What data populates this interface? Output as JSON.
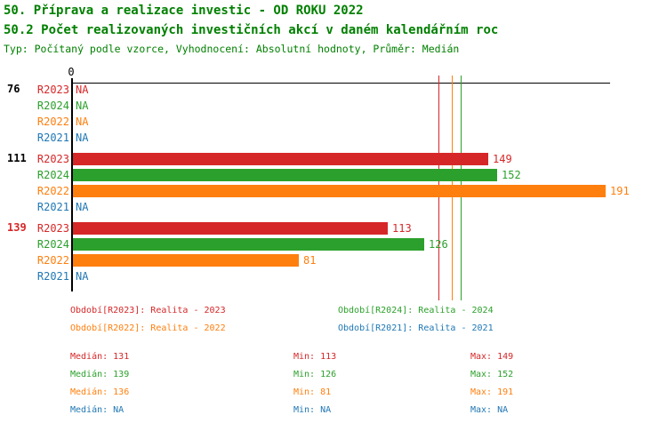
{
  "header": {
    "title": "50. Příprava a realizace investic - OD ROKU 2022",
    "subtitle": "50.2 Počet realizovaných investičních akcí v daném kalendářním roc",
    "meta": "Typ: Počítaný podle vzorce, Vyhodnocení: Absolutní hodnoty, Průměr: Medián",
    "title_color": "#008000"
  },
  "series_colors": {
    "R2023": "#d62728",
    "R2024": "#2ca02c",
    "R2022": "#ff7f0e",
    "R2021": "#1f77b4"
  },
  "chart_data": {
    "type": "bar",
    "orientation": "horizontal",
    "axis_zero_label": "0",
    "xlim": [
      0,
      192
    ],
    "gridlines": false,
    "na_text": "NA",
    "series_order": [
      "R2023",
      "R2024",
      "R2022",
      "R2021"
    ],
    "groups": [
      {
        "label": "76",
        "label_color": "#000000",
        "bars": [
          {
            "series": "R2023",
            "value": null
          },
          {
            "series": "R2024",
            "value": null
          },
          {
            "series": "R2022",
            "value": null
          },
          {
            "series": "R2021",
            "value": null
          }
        ]
      },
      {
        "label": "111",
        "label_color": "#000000",
        "bars": [
          {
            "series": "R2023",
            "value": 149
          },
          {
            "series": "R2024",
            "value": 152
          },
          {
            "series": "R2022",
            "value": 191
          },
          {
            "series": "R2021",
            "value": null
          }
        ]
      },
      {
        "label": "139",
        "label_color": "#d62728",
        "bars": [
          {
            "series": "R2023",
            "value": 113
          },
          {
            "series": "R2024",
            "value": 126
          },
          {
            "series": "R2022",
            "value": 81
          },
          {
            "series": "R2021",
            "value": null
          }
        ]
      }
    ],
    "median_lines": [
      {
        "series": "R2023",
        "value": 131
      },
      {
        "series": "R2022",
        "value": 136
      },
      {
        "series": "R2024",
        "value": 139
      }
    ]
  },
  "legend": {
    "items": [
      {
        "series": "R2023",
        "text": "Období[R2023]: Realita - 2023"
      },
      {
        "series": "R2024",
        "text": "Období[R2024]: Realita - 2024"
      },
      {
        "series": "R2022",
        "text": "Období[R2022]: Realita - 2022"
      },
      {
        "series": "R2021",
        "text": "Období[R2021]: Realita - 2021"
      }
    ]
  },
  "stats": {
    "rows": [
      {
        "series": "R2023",
        "median": "Medián: 131",
        "min": "Min: 113",
        "max": "Max: 149"
      },
      {
        "series": "R2024",
        "median": "Medián: 139",
        "min": "Min: 126",
        "max": "Max: 152"
      },
      {
        "series": "R2022",
        "median": "Medián: 136",
        "min": "Min: 81",
        "max": "Max: 191"
      },
      {
        "series": "R2021",
        "median": "Medián: NA",
        "min": "Min: NA",
        "max": "Max: NA"
      }
    ]
  }
}
